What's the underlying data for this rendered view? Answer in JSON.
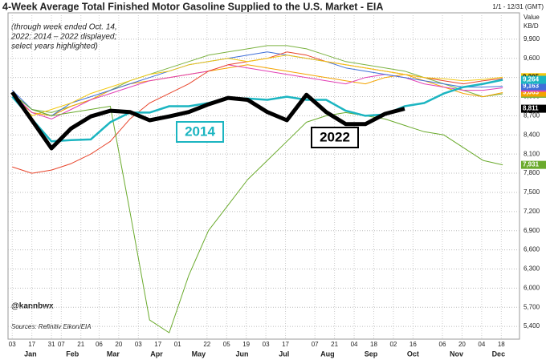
{
  "chart_data": {
    "type": "line",
    "title": "4-Week Average Total Finished Motor Gasoline Supplied to the U.S. Market - EIA",
    "subtitle": [
      "(through week ended Oct. 14,",
      "2022; 2014 – 2022 displayed;",
      "select years highlighted)"
    ],
    "date_range": "1/1 - 12/31 (GMT)",
    "y_axis_label": [
      "Value",
      "KB/D"
    ],
    "handle": "@kannbwx",
    "source": "Sources: Refinitiv Eikon/EIA",
    "xlim": [
      0,
      365
    ],
    "ylim": [
      5200,
      10100
    ],
    "grid": true,
    "x": [
      3,
      17,
      31,
      45,
      59,
      73,
      87,
      101,
      115,
      129,
      143,
      157,
      171,
      185,
      199,
      213,
      227,
      241,
      255,
      269,
      283,
      297,
      311,
      325,
      339,
      353
    ],
    "xticks": [
      {
        "value": 3,
        "label": "03"
      },
      17,
      31,
      {
        "value": 38,
        "label": "07"
      },
      {
        "value": 52,
        "label": "21"
      },
      {
        "value": 65,
        "label": "06"
      },
      {
        "value": 79,
        "label": "20"
      },
      {
        "value": 93,
        "label": "03"
      },
      {
        "value": 107,
        "label": "17"
      },
      {
        "value": 121,
        "label": "01"
      },
      {
        "value": 142,
        "label": "22"
      },
      {
        "value": 156,
        "label": "05"
      },
      {
        "value": 170,
        "label": "19"
      },
      {
        "value": 184,
        "label": "03"
      },
      {
        "value": 198,
        "label": "17"
      },
      {
        "value": 219,
        "label": "07"
      },
      {
        "value": 233,
        "label": "21"
      },
      {
        "value": 247,
        "label": "04"
      },
      {
        "value": 261,
        "label": "18"
      },
      {
        "value": 275,
        "label": "02"
      },
      {
        "value": 289,
        "label": "16"
      },
      {
        "value": 310,
        "label": "06"
      },
      {
        "value": 324,
        "label": "20"
      },
      {
        "value": 338,
        "label": "04"
      },
      {
        "value": 352,
        "label": "18"
      }
    ],
    "xticks_months": [
      {
        "value": 16,
        "label": "Jan"
      },
      {
        "value": 46,
        "label": "Feb"
      },
      {
        "value": 75,
        "label": "Mar"
      },
      {
        "value": 106,
        "label": "Apr"
      },
      {
        "value": 136,
        "label": "May"
      },
      {
        "value": 167,
        "label": "Jun"
      },
      {
        "value": 197,
        "label": "Jul"
      },
      {
        "value": 228,
        "label": "Aug"
      },
      {
        "value": 259,
        "label": "Sep"
      },
      {
        "value": 289,
        "label": "Oct"
      },
      {
        "value": 320,
        "label": "Nov"
      },
      {
        "value": 350,
        "label": "Dec"
      }
    ],
    "yticks": [
      {
        "value": 5400,
        "label": "5,400"
      },
      {
        "value": 5700,
        "label": "5,700"
      },
      {
        "value": 6000,
        "label": "6,000"
      },
      {
        "value": 6300,
        "label": "6,300"
      },
      {
        "value": 6600,
        "label": "6,600"
      },
      {
        "value": 6900,
        "label": "6,900"
      },
      {
        "value": 7200,
        "label": "7,200"
      },
      {
        "value": 7500,
        "label": "7,500"
      },
      {
        "value": 7800,
        "label": "7,800"
      },
      {
        "value": 8100,
        "label": "8,100"
      },
      {
        "value": 8400,
        "label": "8,400"
      },
      {
        "value": 8700,
        "label": "8,700"
      },
      {
        "value": 9000,
        "label": "9,000"
      },
      {
        "value": 9300,
        "label": "9,300"
      },
      {
        "value": 9600,
        "label": "9,600"
      },
      {
        "value": 9900,
        "label": "9,900"
      }
    ],
    "series": [
      {
        "color": "#7cb342",
        "width": 1,
        "end_label": "9,045",
        "values": [
          9050,
          8800,
          8750,
          8850,
          8950,
          9100,
          9250,
          9350,
          9450,
          9550,
          9650,
          9700,
          9750,
          9800,
          9800,
          9750,
          9650,
          9550,
          9500,
          9450,
          9400,
          9300,
          9200,
          9100,
          9000,
          9045
        ]
      },
      {
        "color": "#f4a300",
        "width": 1,
        "end_label": "9,063",
        "values": [
          9000,
          8750,
          8700,
          8850,
          8950,
          9100,
          9200,
          9250,
          9300,
          9350,
          9400,
          9450,
          9500,
          9450,
          9400,
          9350,
          9300,
          9250,
          9200,
          9300,
          9350,
          9250,
          9150,
          9050,
          9000,
          9063
        ]
      },
      {
        "color": "#e23fb5",
        "width": 1,
        "end_label": "9,139",
        "values": [
          9050,
          8750,
          8650,
          8800,
          8950,
          9050,
          9150,
          9250,
          9300,
          9350,
          9400,
          9500,
          9450,
          9400,
          9350,
          9300,
          9250,
          9200,
          9300,
          9350,
          9300,
          9200,
          9150,
          9100,
          9100,
          9139
        ]
      },
      {
        "color": "#3f6fd8",
        "width": 1,
        "end_label": "9,163",
        "values": [
          9100,
          8800,
          8700,
          8900,
          9000,
          9100,
          9200,
          9300,
          9400,
          9500,
          9550,
          9600,
          9650,
          9700,
          9650,
          9600,
          9550,
          9450,
          9400,
          9350,
          9300,
          9250,
          9200,
          9150,
          9150,
          9163
        ]
      },
      {
        "color": "#e8452c",
        "width": 1,
        "end_label": "9,285",
        "values": [
          7900,
          7800,
          7850,
          7950,
          8100,
          8300,
          8650,
          8900,
          9050,
          9200,
          9400,
          9500,
          9550,
          9600,
          9700,
          9650,
          9550,
          9500,
          9450,
          9400,
          9350,
          9300,
          9250,
          9200,
          9250,
          9285
        ]
      },
      {
        "color": "#f2c80f",
        "width": 1,
        "end_label": "9,305",
        "values": [
          9000,
          8700,
          8800,
          8900,
          9050,
          9150,
          9250,
          9350,
          9400,
          9500,
          9550,
          9600,
          9550,
          9600,
          9650,
          9600,
          9550,
          9500,
          9450,
          9400,
          9350,
          9300,
          9280,
          9250,
          9270,
          9305
        ]
      },
      {
        "color": "#6aaa2c",
        "width": 1,
        "end_label": "7,931",
        "values": [
          9050,
          8800,
          8700,
          8750,
          8800,
          8850,
          7200,
          5500,
          5300,
          6200,
          6900,
          7300,
          7700,
          8000,
          8300,
          8600,
          8700,
          8750,
          8700,
          8650,
          8550,
          8450,
          8400,
          8200,
          8000,
          7931
        ]
      },
      {
        "name": "2014",
        "color": "#1bb5c1",
        "width": 2.5,
        "end_label": "9,264",
        "values": [
          9000,
          8650,
          8300,
          8320,
          8330,
          8600,
          8750,
          8750,
          8850,
          8850,
          8900,
          8980,
          8970,
          8950,
          9000,
          8950,
          8950,
          8780,
          8700,
          8720,
          8850,
          8900,
          9050,
          9150,
          9200,
          9264
        ]
      },
      {
        "name": "2022",
        "color": "#000000",
        "width": 5,
        "end_label": "8,811",
        "values": [
          9070,
          8630,
          8190,
          8500,
          8690,
          8780,
          8760,
          8630,
          8690,
          8760,
          8880,
          8980,
          8950,
          8760,
          8630,
          9030,
          8760,
          8570,
          8570,
          8730,
          8811,
          null,
          null,
          null,
          null,
          null
        ]
      }
    ]
  }
}
